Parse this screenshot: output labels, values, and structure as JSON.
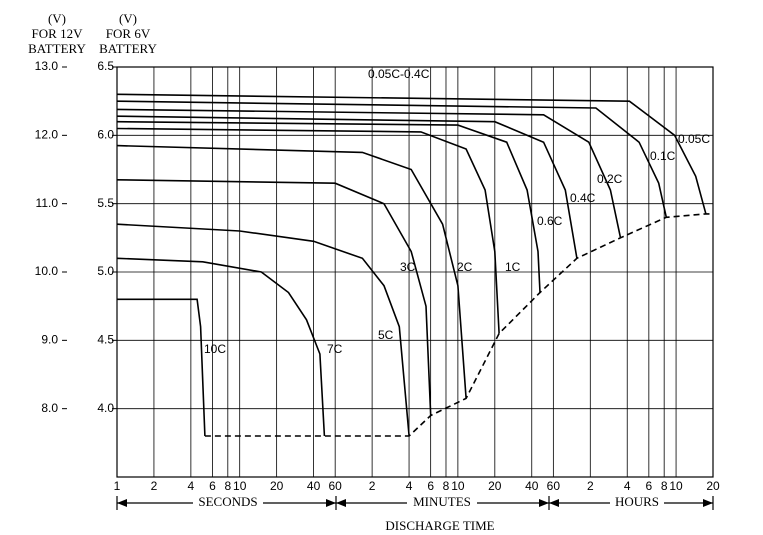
{
  "chart_data": {
    "type": "line",
    "header": {
      "left": [
        "(V)",
        "FOR 12V",
        "BATTERY"
      ],
      "right": [
        "(V)",
        "FOR 6V",
        "BATTERY"
      ]
    },
    "annotation": "0.05C-0.4C",
    "xlabel": "DISCHARGE TIME",
    "xsections": [
      "SECONDS",
      "MINUTES",
      "HOURS"
    ],
    "xscale": "log",
    "grid": true,
    "color": "#000000",
    "xlim": [
      1,
      72000
    ],
    "xticks": [
      1,
      2,
      4,
      6,
      8,
      10,
      20,
      40,
      60,
      {
        "value": 120,
        "label": "2"
      },
      {
        "value": 240,
        "label": "4"
      },
      {
        "value": 360,
        "label": "6"
      },
      {
        "value": 480,
        "label": "8"
      },
      {
        "value": 600,
        "label": "10"
      },
      {
        "value": 1200,
        "label": "20"
      },
      {
        "value": 2400,
        "label": "40"
      },
      {
        "value": 3600,
        "label": "60"
      },
      {
        "value": 7200,
        "label": "2"
      },
      {
        "value": 14400,
        "label": "4"
      },
      {
        "value": 21600,
        "label": "6"
      },
      {
        "value": 28800,
        "label": "8"
      },
      {
        "value": 36000,
        "label": "10"
      },
      {
        "value": 72000,
        "label": "20"
      }
    ],
    "ylim": [
      7,
      13
    ],
    "yticks": [
      {
        "value": 8,
        "label": "8.0"
      },
      {
        "value": 9,
        "label": "9.0"
      },
      {
        "value": 10,
        "label": "10.0"
      },
      {
        "value": 11,
        "label": "11.0"
      },
      {
        "value": 12,
        "label": "12.0"
      },
      {
        "value": 13,
        "label": "13.0"
      }
    ],
    "y2lim": [
      3.5,
      6.5
    ],
    "y2ticks": [
      {
        "value": 4,
        "label": "4.0"
      },
      4.5,
      {
        "value": 5,
        "label": "5.0"
      },
      5.5,
      {
        "value": 6,
        "label": "6.0"
      },
      6.5
    ],
    "series": [
      {
        "name": "10C",
        "x": [
          1,
          4.5,
          4.8,
          5.2
        ],
        "values": [
          9.6,
          9.6,
          9.2,
          7.6
        ]
      },
      {
        "name": "7C",
        "x": [
          1,
          5,
          15,
          25,
          35,
          45,
          49
        ],
        "values": [
          10.2,
          10.15,
          10.0,
          9.7,
          9.3,
          8.8,
          7.6
        ]
      },
      {
        "name": "5C",
        "x": [
          1,
          10,
          40,
          100,
          150,
          200,
          240
        ],
        "values": [
          10.7,
          10.6,
          10.45,
          10.2,
          9.8,
          9.2,
          7.6
        ]
      },
      {
        "name": "3C",
        "x": [
          1,
          60,
          150,
          250,
          330,
          360
        ],
        "values": [
          11.35,
          11.3,
          11.0,
          10.3,
          9.5,
          7.9
        ]
      },
      {
        "name": "2C",
        "x": [
          1,
          100,
          250,
          450,
          600,
          700
        ],
        "values": [
          11.85,
          11.75,
          11.5,
          10.7,
          9.8,
          8.15
        ]
      },
      {
        "name": "1C",
        "x": [
          1,
          300,
          700,
          1000,
          1200,
          1300
        ],
        "values": [
          12.1,
          12.05,
          11.8,
          11.2,
          10.3,
          9.1
        ]
      },
      {
        "name": "0.6C",
        "x": [
          1,
          600,
          1500,
          2200,
          2700,
          2800
        ],
        "values": [
          12.2,
          12.15,
          11.9,
          11.2,
          10.3,
          9.7
        ]
      },
      {
        "name": "0.4C",
        "x": [
          1,
          1200,
          3000,
          4500,
          5600
        ],
        "values": [
          12.28,
          12.2,
          11.9,
          11.2,
          10.2
        ]
      },
      {
        "name": "0.2C",
        "x": [
          1,
          3000,
          7000,
          10500,
          12700
        ],
        "values": [
          12.38,
          12.3,
          11.9,
          11.2,
          10.5
        ]
      },
      {
        "name": "0.1C",
        "x": [
          1,
          8000,
          18000,
          26000,
          30000
        ],
        "values": [
          12.5,
          12.4,
          11.9,
          11.3,
          10.8
        ]
      },
      {
        "name": "0.05C",
        "x": [
          1,
          15000,
          35000,
          52000,
          63000
        ],
        "values": [
          12.6,
          12.5,
          12.0,
          11.4,
          10.85
        ]
      },
      {
        "dashed": true,
        "x": [
          5.2,
          240,
          360,
          700,
          1300,
          2800,
          5600,
          12700,
          30000,
          63000,
          72000
        ],
        "values": [
          7.6,
          7.6,
          7.9,
          8.15,
          9.1,
          9.7,
          10.2,
          10.5,
          10.8,
          10.85,
          10.85
        ]
      }
    ]
  }
}
